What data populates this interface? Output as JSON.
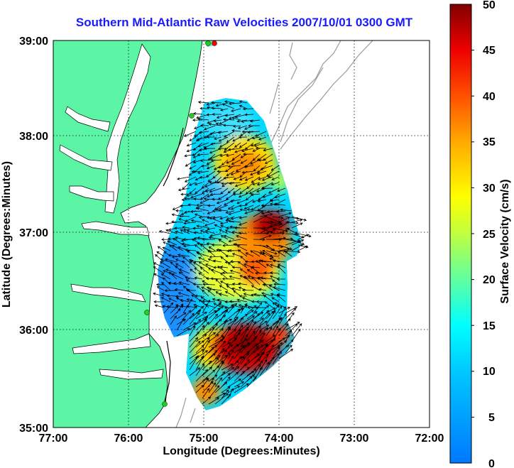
{
  "title": "Southern Mid-Atlantic Raw Velocities 2007/10/01 0300 GMT",
  "x_axis": {
    "label": "Longitude (Degrees:Minutes)",
    "ticks": [
      "77:00",
      "76:00",
      "75:00",
      "74:00",
      "73:00",
      "72:00"
    ]
  },
  "y_axis": {
    "label": "Latitude (Degrees:Minutes)",
    "ticks": [
      "39:00",
      "38:00",
      "37:00",
      "36:00",
      "35:00"
    ]
  },
  "colorbar": {
    "label": "Surface Velocity (cm/s)",
    "ticks": [
      "50",
      "45",
      "40",
      "35",
      "30",
      "25",
      "20",
      "15",
      "10",
      "5",
      "0"
    ],
    "range": [
      0,
      50
    ],
    "colormap": "jet"
  },
  "colors": {
    "land": "#5cf5a5",
    "water": "#ffffff",
    "coastline": "#000000",
    "bathymetry": "#9a9a9a",
    "grid": "#000000",
    "title": "#1a1aff",
    "station_green": "#22cc22",
    "station_red": "#ff0000"
  },
  "map": {
    "lon_range": [
      -77,
      -72
    ],
    "lat_range": [
      35,
      39
    ],
    "grid": "dotted",
    "vectors": "black arrows"
  }
}
